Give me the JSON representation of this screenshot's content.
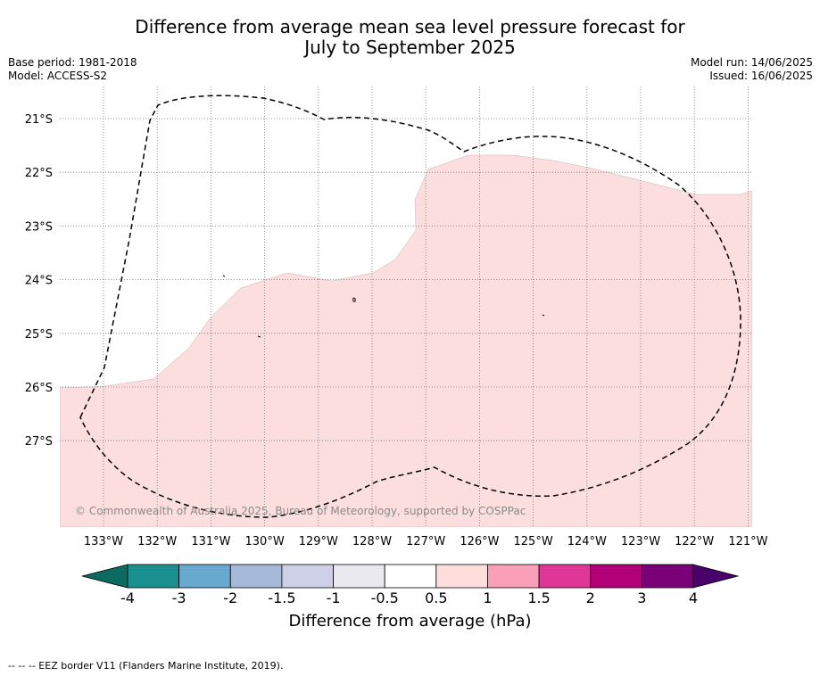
{
  "title_line1": "Difference from average mean sea level pressure forecast for",
  "title_line2": "July to September 2025",
  "base_period": "Base period: 1981-2018",
  "model": "Model: ACCESS-S2",
  "model_run": "Model run: 14/06/2025",
  "issued": "Issued: 16/06/2025",
  "credit": "© Commonwealth of Australia 2025, Bureau of Meteorology, supported by COSPPac",
  "colorbar": {
    "label": "Difference from average (hPa)",
    "ticks": [
      "-4",
      "-3",
      "-2",
      "-1.5",
      "-1",
      "-0.5",
      "0.5",
      "1",
      "1.5",
      "2",
      "3",
      "4"
    ],
    "low_extend_color": "#0b6b61",
    "bin_colors": [
      "#1a9090",
      "#68a9d0",
      "#a7b9d9",
      "#cdd0e6",
      "#ebe9f0",
      "#ffffff",
      "#fedddd",
      "#f9a0b8",
      "#df3798",
      "#b10078",
      "#7a0177"
    ],
    "high_extend_color": "#49006a"
  },
  "map": {
    "lon_labels": [
      "133°W",
      "132°W",
      "131°W",
      "130°W",
      "129°W",
      "128°W",
      "127°W",
      "126°W",
      "125°W",
      "124°W",
      "123°W",
      "122°W",
      "121°W"
    ],
    "lat_labels": [
      "21°S",
      "22°S",
      "23°S",
      "24°S",
      "25°S",
      "26°S",
      "27°S"
    ],
    "anomaly_fill_color": "#fddede",
    "anomaly_range_hPa": "0.5 to 1"
  },
  "footnote": "--  --  -- EEZ border V11 (Flanders Marine Institute, 2019)."
}
